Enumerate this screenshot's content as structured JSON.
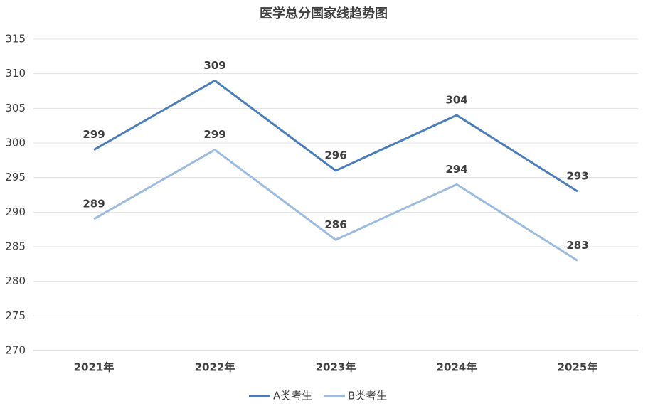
{
  "chart_data": {
    "type": "line",
    "title": "医学总分国家线趋势图",
    "categories": [
      "2021年",
      "2022年",
      "2023年",
      "2024年",
      "2025年"
    ],
    "series": [
      {
        "name": "A类考生",
        "color": "#4a7ebb",
        "values": [
          299,
          309,
          296,
          304,
          293
        ]
      },
      {
        "name": "B类考生",
        "color": "#9bbbe0",
        "values": [
          289,
          299,
          286,
          294,
          283
        ]
      }
    ],
    "ylim": [
      270,
      315
    ],
    "yticks": [
      270,
      275,
      280,
      285,
      290,
      295,
      300,
      305,
      310,
      315
    ],
    "grid": true,
    "legend": "bottom"
  }
}
